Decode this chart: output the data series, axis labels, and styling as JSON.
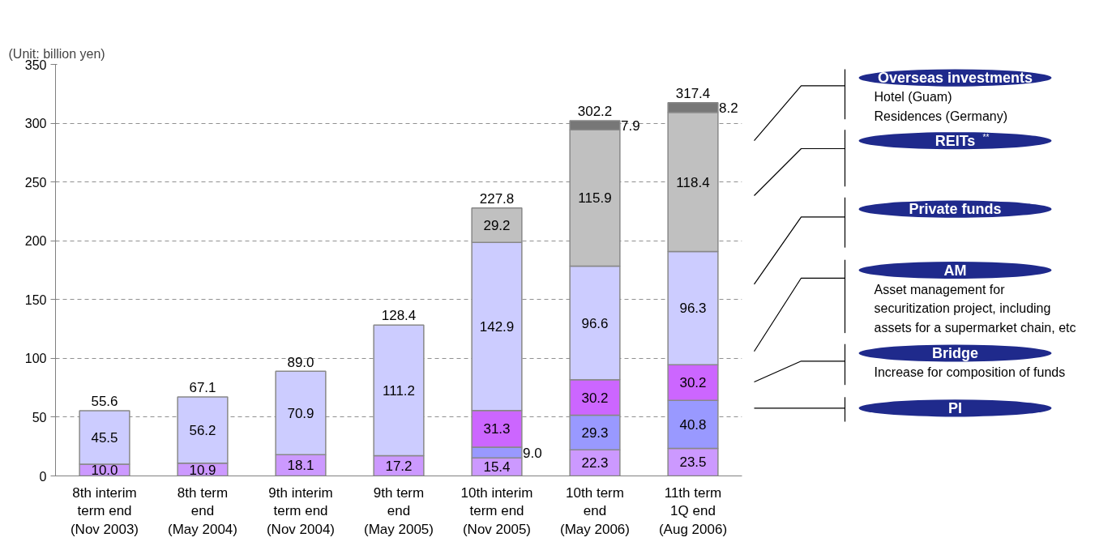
{
  "chart_data": {
    "type": "bar",
    "stacked": true,
    "categories": [
      "8th interim\nterm end\n(Nov 2003)",
      "8th term\nend\n(May 2004)",
      "9th interim\nterm end\n(Nov 2004)",
      "9th term\nend\n(May 2005)",
      "10th interim\nterm end\n(Nov 2005)",
      "10th term\nend\n(May 2006)",
      "11th term\n1Q end\n(Aug 2006)"
    ],
    "series": [
      {
        "name": "PI",
        "color": "#cc99ff",
        "values": [
          10.0,
          10.9,
          18.1,
          17.2,
          15.4,
          22.3,
          23.5
        ],
        "value_labels": [
          "10.0",
          "10.9",
          "18.1",
          "17.2",
          "15.4",
          "22.3",
          "23.5"
        ]
      },
      {
        "name": "Bridge",
        "color": "#9999ff",
        "values": [
          null,
          null,
          null,
          null,
          9.0,
          29.3,
          40.8
        ],
        "value_labels": [
          null,
          null,
          null,
          null,
          "9.0",
          "29.3",
          "40.8"
        ]
      },
      {
        "name": "AM",
        "color": "#cc66ff",
        "values": [
          null,
          null,
          null,
          null,
          31.3,
          30.2,
          30.2
        ],
        "value_labels": [
          null,
          null,
          null,
          null,
          "31.3",
          "30.2",
          "30.2"
        ]
      },
      {
        "name": "Private funds",
        "color": "#ccccff",
        "values": [
          45.5,
          56.2,
          70.9,
          111.2,
          142.9,
          96.6,
          96.3
        ],
        "value_labels": [
          "45.5",
          "56.2",
          "70.9",
          "111.2",
          "142.9",
          "96.6",
          "96.3"
        ]
      },
      {
        "name": "REITs$^{**}$",
        "color": "#c0c0c0",
        "values": [
          null,
          null,
          null,
          null,
          29.2,
          115.9,
          118.4
        ],
        "value_labels": [
          null,
          null,
          null,
          null,
          "29.2",
          "115.9",
          "118.4"
        ]
      },
      {
        "name": "Overseas investments",
        "color": "#777777",
        "values": [
          null,
          null,
          null,
          null,
          null,
          7.9,
          8.2
        ],
        "value_labels": [
          null,
          null,
          null,
          null,
          null,
          "7.9",
          "8.2"
        ]
      }
    ],
    "totals": [
      "55.6",
      "67.1",
      "89.0",
      "128.4",
      "227.8",
      "302.2",
      "317.4"
    ],
    "ylim": [
      0,
      350
    ],
    "yticks": [
      0,
      50,
      100,
      150,
      200,
      250,
      300,
      350
    ],
    "grid": "y",
    "legend": "right",
    "annotations": [
      "(Unit: billion yen)",
      "Hotel (Guam)\nResidences (Germany)",
      "Asset management for\nsecuritization project, including\nassets for a supermarket chain, etc",
      "Increase for composition of funds"
    ]
  }
}
